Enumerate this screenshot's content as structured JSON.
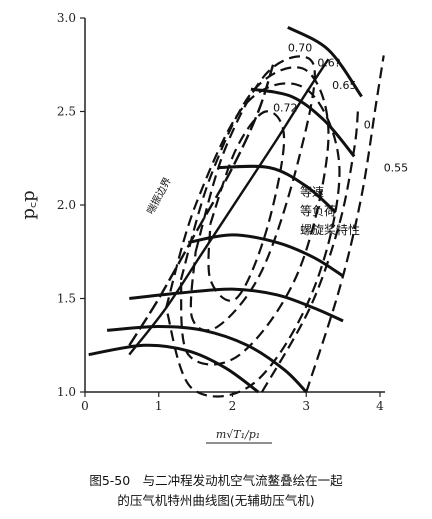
{
  "chart_data": {
    "type": "line",
    "title": "",
    "xlabel": "m√T₁/p₁",
    "ylabel": "p꜀p",
    "xlim": [
      0,
      4
    ],
    "ylim": [
      1.0,
      3.0
    ],
    "x_ticks": [
      "0",
      "1",
      "2",
      "3",
      "4"
    ],
    "y_ticks": [
      "1.0",
      "1.5",
      "2.0",
      "2.5",
      "3.0"
    ],
    "surge_line": {
      "label": "喘振边界",
      "points": [
        [
          0.6,
          1.25
        ],
        [
          1.0,
          1.5
        ],
        [
          1.5,
          1.85
        ],
        [
          2.0,
          2.2
        ],
        [
          2.35,
          2.5
        ],
        [
          2.55,
          2.75
        ]
      ]
    },
    "speed_lines": [
      {
        "points": [
          [
            0.05,
            1.2
          ],
          [
            0.8,
            1.25
          ],
          [
            1.4,
            1.22
          ],
          [
            1.9,
            1.13
          ],
          [
            2.35,
            1.0
          ]
        ]
      },
      {
        "points": [
          [
            0.3,
            1.33
          ],
          [
            1.0,
            1.35
          ],
          [
            1.6,
            1.33
          ],
          [
            2.2,
            1.25
          ],
          [
            2.7,
            1.12
          ],
          [
            3.0,
            1.0
          ]
        ]
      },
      {
        "points": [
          [
            0.6,
            1.5
          ],
          [
            1.3,
            1.53
          ],
          [
            2.0,
            1.55
          ],
          [
            2.6,
            1.52
          ],
          [
            3.1,
            1.45
          ],
          [
            3.5,
            1.38
          ]
        ]
      },
      {
        "points": [
          [
            1.4,
            1.8
          ],
          [
            2.0,
            1.84
          ],
          [
            2.6,
            1.8
          ],
          [
            3.1,
            1.72
          ],
          [
            3.5,
            1.62
          ]
        ]
      },
      {
        "points": [
          [
            1.8,
            2.2
          ],
          [
            2.5,
            2.2
          ],
          [
            3.0,
            2.1
          ],
          [
            3.4,
            1.96
          ]
        ]
      },
      {
        "points": [
          [
            2.25,
            2.62
          ],
          [
            2.8,
            2.58
          ],
          [
            3.25,
            2.45
          ],
          [
            3.65,
            2.26
          ]
        ]
      },
      {
        "points": [
          [
            2.75,
            2.95
          ],
          [
            3.3,
            2.83
          ],
          [
            3.75,
            2.58
          ]
        ]
      }
    ],
    "efficiency_contours": [
      {
        "label": "0.72",
        "points": [
          [
            1.7,
            1.9
          ],
          [
            2.05,
            2.3
          ],
          [
            2.45,
            2.5
          ],
          [
            2.7,
            2.35
          ],
          [
            2.45,
            1.85
          ],
          [
            2.05,
            1.5
          ],
          [
            1.7,
            1.6
          ],
          [
            1.7,
            1.9
          ]
        ]
      },
      {
        "label": "0.70",
        "points": [
          [
            1.5,
            1.75
          ],
          [
            1.9,
            2.3
          ],
          [
            2.5,
            2.72
          ],
          [
            3.1,
            2.75
          ],
          [
            2.9,
            2.25
          ],
          [
            2.4,
            1.65
          ],
          [
            1.8,
            1.35
          ],
          [
            1.45,
            1.4
          ],
          [
            1.5,
            1.75
          ]
        ]
      },
      {
        "label": "0.6?",
        "points": [
          [
            1.3,
            1.6
          ],
          [
            1.7,
            2.15
          ],
          [
            2.3,
            2.62
          ],
          [
            3.0,
            2.72
          ],
          [
            3.3,
            2.35
          ],
          [
            2.9,
            1.65
          ],
          [
            2.1,
            1.2
          ],
          [
            1.4,
            1.2
          ],
          [
            1.3,
            1.6
          ]
        ]
      },
      {
        "label": "0.65",
        "points": [
          [
            1.1,
            1.45
          ],
          [
            1.5,
            2.0
          ],
          [
            2.2,
            2.55
          ],
          [
            3.0,
            2.62
          ],
          [
            3.45,
            2.2
          ],
          [
            3.1,
            1.55
          ],
          [
            2.3,
            1.05
          ],
          [
            1.45,
            1.02
          ],
          [
            1.1,
            1.45
          ]
        ]
      },
      {
        "label": "0.",
        "points": [
          [
            2.4,
            1.0
          ],
          [
            3.05,
            1.45
          ],
          [
            3.45,
            1.9
          ],
          [
            3.65,
            2.3
          ],
          [
            3.7,
            2.5
          ]
        ]
      },
      {
        "label": "0.55",
        "points": [
          [
            3.0,
            1.0
          ],
          [
            3.45,
            1.55
          ],
          [
            3.75,
            2.05
          ],
          [
            3.95,
            2.55
          ],
          [
            4.05,
            2.8
          ]
        ]
      }
    ],
    "propeller_curve": {
      "points": [
        [
          0.6,
          1.2
        ],
        [
          1.1,
          1.45
        ],
        [
          1.6,
          1.75
        ],
        [
          2.1,
          2.05
        ],
        [
          2.6,
          2.35
        ],
        [
          3.0,
          2.6
        ],
        [
          3.3,
          2.78
        ]
      ]
    },
    "legend_note": [
      "等速",
      "等负荷",
      "螺旋桨特性"
    ],
    "caption": [
      "图5-50　与二冲程发动机空气流鳌叠绘在一起",
      "的压气机特州曲线图(无辅助压气机)"
    ]
  }
}
